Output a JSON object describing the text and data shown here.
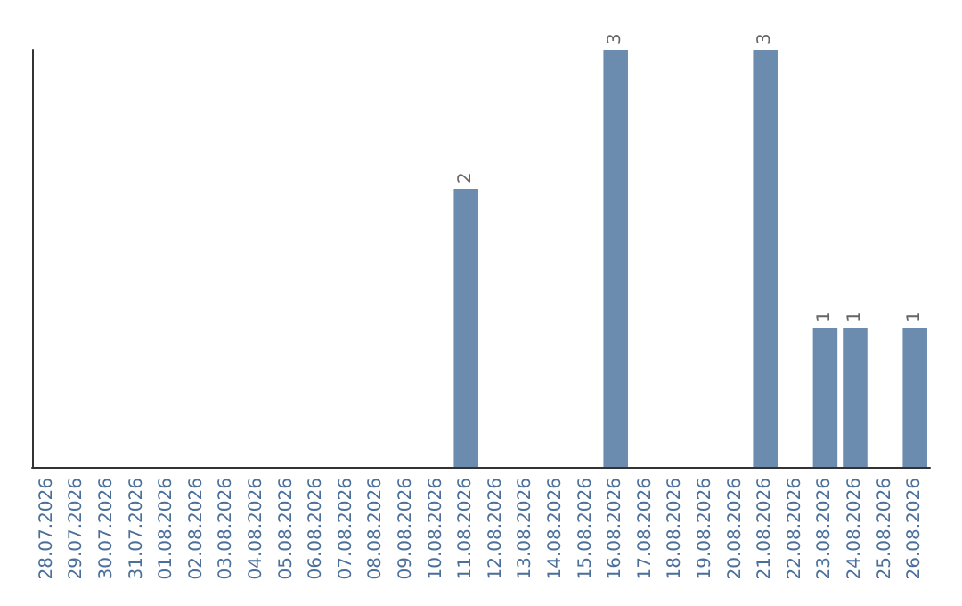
{
  "chart_data": {
    "type": "bar",
    "categories": [
      "28.07.2026",
      "29.07.2026",
      "30.07.2026",
      "31.07.2026",
      "01.08.2026",
      "02.08.2026",
      "03.08.2026",
      "04.08.2026",
      "05.08.2026",
      "06.08.2026",
      "07.08.2026",
      "08.08.2026",
      "09.08.2026",
      "10.08.2026",
      "11.08.2026",
      "12.08.2026",
      "13.08.2026",
      "14.08.2026",
      "15.08.2026",
      "16.08.2026",
      "17.08.2026",
      "18.08.2026",
      "19.08.2026",
      "20.08.2026",
      "21.08.2026",
      "22.08.2026",
      "23.08.2026",
      "24.08.2026",
      "25.08.2026",
      "26.08.2026"
    ],
    "values": [
      null,
      null,
      null,
      null,
      null,
      null,
      null,
      null,
      null,
      null,
      null,
      null,
      null,
      null,
      2,
      null,
      null,
      null,
      null,
      3,
      null,
      null,
      null,
      null,
      3,
      null,
      1,
      1,
      null,
      1
    ],
    "data_labels": true,
    "color": "#6b8cae",
    "ylim": [
      0,
      3
    ],
    "tick_labels": "x",
    "grid": false
  }
}
